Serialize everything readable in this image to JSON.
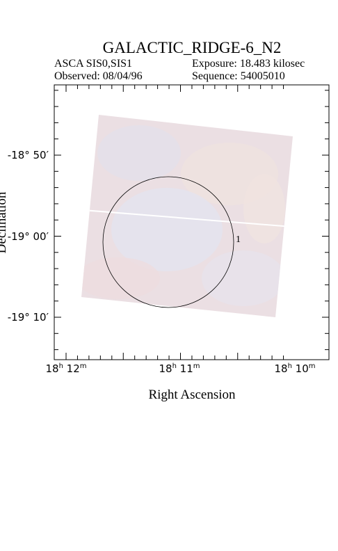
{
  "header": {
    "title": "GALACTIC_RIDGE-6_N2",
    "instrument": "ASCA SIS0,SIS1",
    "observed": "Observed: 08/04/96",
    "exposure": "Exposure: 18.483 kilosec",
    "sequence": "Sequence: 54005010"
  },
  "axes": {
    "x_label": "Right Ascension",
    "y_label": "Declination",
    "x_ticks": [
      [
        "18",
        "h",
        " 12",
        "m"
      ],
      [
        "18",
        "h",
        " 11",
        "m"
      ],
      [
        "18",
        "h",
        " 10",
        "m"
      ]
    ],
    "y_ticks": [
      "-18° 50′",
      "-19° 00′",
      "-19° 10′"
    ]
  },
  "regions": [
    {
      "label": "1"
    }
  ]
}
